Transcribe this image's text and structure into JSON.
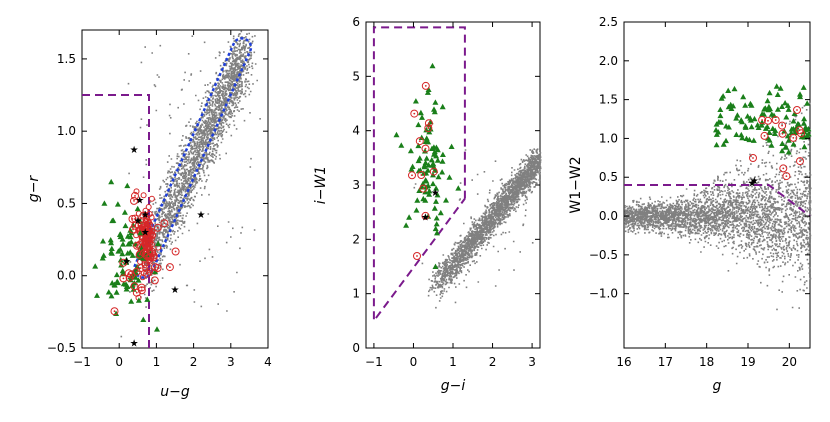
{
  "colors": {
    "background_points": "#808080",
    "triangles": "#1a7f1a",
    "circles": "#d62728",
    "stars": "#000000",
    "selection_box": "#7b1a8c",
    "blue_outline": "#1f3fd9"
  },
  "chart_data": [
    {
      "type": "scatter",
      "id": "panel-1",
      "xlabel": "u−g",
      "ylabel": "g−r",
      "xlim": [
        -1,
        4
      ],
      "ylim": [
        -0.5,
        1.7
      ],
      "xticks": [
        -1,
        0,
        1,
        2,
        3,
        4
      ],
      "yticks": [
        -0.5,
        0.0,
        0.5,
        1.0,
        1.5
      ],
      "xtick_labels": [
        "−1",
        "0",
        "1",
        "2",
        "3",
        "4"
      ],
      "ytick_labels": [
        "−0.5",
        "0.0",
        "0.5",
        "1.0",
        "1.5"
      ],
      "background": {
        "n": 2600,
        "seed": 11,
        "model": "band",
        "x_from": 0.5,
        "x_to": 3.4,
        "y_from": 0.0,
        "y_to": 1.55,
        "x_jitter": 0.12,
        "y_jitter": 0.12,
        "extra_scatter": 120
      },
      "triangles": {
        "n": 90,
        "seed": 21,
        "center": [
          0.15,
          0.12
        ],
        "spread": [
          0.35,
          0.2
        ]
      },
      "circles": {
        "n": 45,
        "seed": 31,
        "center": [
          0.65,
          0.18
        ],
        "spread": [
          0.3,
          0.18
        ]
      },
      "red_dense": {
        "n": 120,
        "seed": 41,
        "center": [
          0.72,
          0.25
        ],
        "spread": [
          0.1,
          0.12
        ]
      },
      "stars": [
        [
          0.4,
          0.87
        ],
        [
          0.5,
          0.38
        ],
        [
          0.55,
          0.52
        ],
        [
          0.7,
          0.42
        ],
        [
          0.2,
          0.1
        ],
        [
          0.4,
          -0.47
        ],
        [
          2.2,
          0.42
        ],
        [
          1.5,
          -0.1
        ],
        [
          0.7,
          0.3
        ]
      ],
      "selection_box": [
        [
          -1,
          1.25
        ],
        [
          0.8,
          1.25
        ],
        [
          0.8,
          -0.5
        ]
      ],
      "blue_outline": {
        "x_from": 0.65,
        "x_to": 3.3,
        "y_from": 0.05,
        "y_to": 1.58,
        "half_width": 0.2
      }
    },
    {
      "type": "scatter",
      "id": "panel-2",
      "xlabel": "g−i",
      "ylabel": "i−W1",
      "xlim": [
        -1.2,
        3.2
      ],
      "ylim": [
        0,
        6
      ],
      "xticks": [
        -1,
        0,
        1,
        2,
        3
      ],
      "yticks": [
        0,
        1,
        2,
        3,
        4,
        5,
        6
      ],
      "xtick_labels": [
        "−1",
        "0",
        "1",
        "2",
        "3"
      ],
      "ytick_labels": [
        "0",
        "1",
        "2",
        "3",
        "4",
        "5",
        "6"
      ],
      "background": {
        "n": 2600,
        "seed": 12,
        "model": "band",
        "x_from": 0.5,
        "x_to": 3.2,
        "y_from": 1.1,
        "y_to": 3.5,
        "x_jitter": 0.1,
        "y_jitter": 0.13,
        "extra_scatter": 60
      },
      "triangles": {
        "n": 90,
        "seed": 22,
        "center": [
          0.35,
          3.5
        ],
        "spread": [
          0.25,
          0.6
        ]
      },
      "circles": {
        "n": 12,
        "seed": 32,
        "center": [
          0.3,
          3.4
        ],
        "spread": [
          0.2,
          0.6
        ]
      },
      "stars": [
        [
          0.3,
          2.4
        ],
        [
          0.55,
          2.85
        ]
      ],
      "selection_box": [
        [
          1.3,
          2.75
        ],
        [
          1.3,
          5.9
        ],
        [
          -1,
          5.9
        ],
        [
          -1,
          0.5
        ],
        [
          1.3,
          2.75
        ]
      ]
    },
    {
      "type": "scatter",
      "id": "panel-3",
      "xlabel": "g",
      "ylabel": "W1−W2",
      "xlim": [
        16,
        20.5
      ],
      "ylim": [
        -1.7,
        2.5
      ],
      "xticks": [
        16,
        17,
        18,
        19,
        20
      ],
      "yticks": [
        -1.0,
        -0.5,
        0.0,
        0.5,
        1.0,
        1.5,
        2.0,
        2.5
      ],
      "xtick_labels": [
        "16",
        "17",
        "18",
        "19",
        "20"
      ],
      "ytick_labels": [
        "−1.0",
        "−0.5",
        "0.0",
        "0.5",
        "1.0",
        "1.5",
        "2.0",
        "2.5"
      ],
      "background": {
        "n": 3200,
        "seed": 13,
        "model": "strip",
        "x_from": 16,
        "x_to": 20.5,
        "y_center": 0.0,
        "y_spread_min": 0.08,
        "y_spread_max": 0.45,
        "upper_extra": 140
      },
      "triangles": {
        "n": 110,
        "seed": 23,
        "x_range": [
          18.2,
          20.5
        ],
        "y_range": [
          0.9,
          1.6
        ]
      },
      "circles": {
        "n": 14,
        "seed": 33,
        "x_range": [
          19.0,
          20.5
        ],
        "y_range": [
          0.5,
          1.4
        ]
      },
      "stars": [
        [
          19.1,
          0.42
        ],
        [
          19.15,
          0.45
        ]
      ],
      "selection_box": [
        [
          16,
          0.4
        ],
        [
          19.5,
          0.4
        ],
        [
          20.5,
          0.0
        ]
      ]
    }
  ]
}
